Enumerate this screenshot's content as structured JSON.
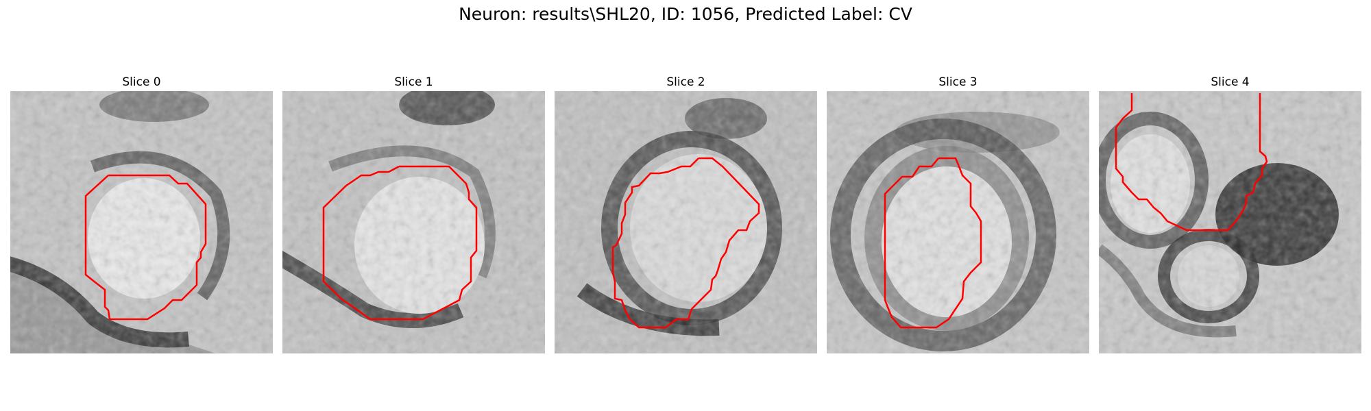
{
  "figure": {
    "title": "Neuron: results\\SHL20, ID: 1056, Predicted Label: CV"
  },
  "panels": [
    {
      "title": "Slice 0"
    },
    {
      "title": "Slice 1"
    },
    {
      "title": "Slice 2"
    },
    {
      "title": "Slice 3"
    },
    {
      "title": "Slice 4"
    }
  ],
  "colors": {
    "contour": "#ff0000",
    "membrane": "#222222",
    "background": "#bdbdbd"
  }
}
